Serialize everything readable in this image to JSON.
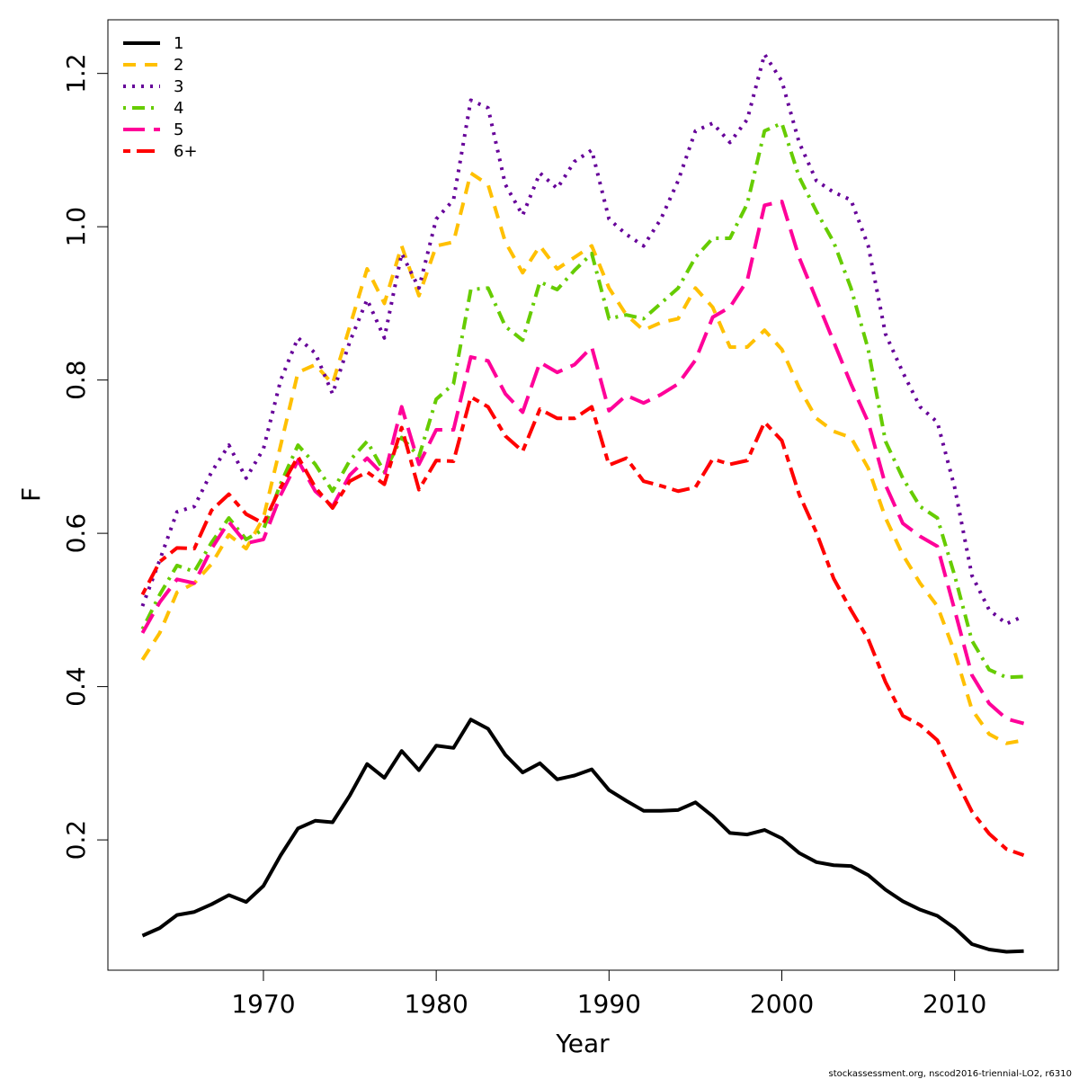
{
  "chart_data": {
    "type": "line",
    "xlabel": "Year",
    "ylabel": "F",
    "xlim": [
      1961,
      2016
    ],
    "ylim": [
      0.03,
      1.27
    ],
    "xticks": [
      1970,
      1980,
      1990,
      2000,
      2010
    ],
    "yticks": [
      0.2,
      0.4,
      0.6,
      0.8,
      1.0,
      1.2
    ],
    "ytick_labels": [
      "0.2",
      "0.4",
      "0.6",
      "0.8",
      "1.0",
      "1.2"
    ],
    "grid": false,
    "legend_position": "top-left",
    "x": [
      1963,
      1964,
      1965,
      1966,
      1967,
      1968,
      1969,
      1970,
      1971,
      1972,
      1973,
      1974,
      1975,
      1976,
      1977,
      1978,
      1979,
      1980,
      1981,
      1982,
      1983,
      1984,
      1985,
      1986,
      1987,
      1988,
      1989,
      1990,
      1991,
      1992,
      1993,
      1994,
      1995,
      1996,
      1997,
      1998,
      1999,
      2000,
      2001,
      2002,
      2003,
      2004,
      2005,
      2006,
      2007,
      2008,
      2009,
      2010,
      2011,
      2012,
      2013,
      2014
    ],
    "series": [
      {
        "name": "1",
        "color": "#000000",
        "dash": "solid",
        "values": [
          0.075,
          0.085,
          0.102,
          0.106,
          0.116,
          0.128,
          0.119,
          0.14,
          0.18,
          0.215,
          0.225,
          0.223,
          0.258,
          0.299,
          0.281,
          0.316,
          0.291,
          0.323,
          0.32,
          0.357,
          0.345,
          0.311,
          0.288,
          0.3,
          0.279,
          0.284,
          0.292,
          0.265,
          0.251,
          0.238,
          0.238,
          0.239,
          0.249,
          0.231,
          0.209,
          0.207,
          0.213,
          0.202,
          0.183,
          0.171,
          0.167,
          0.166,
          0.154,
          0.135,
          0.12,
          0.109,
          0.101,
          0.085,
          0.064,
          0.057,
          0.054,
          0.055
        ]
      },
      {
        "name": "2",
        "color": "#FFC000",
        "dash": "dashed",
        "values": [
          0.435,
          0.47,
          0.523,
          0.535,
          0.56,
          0.598,
          0.58,
          0.62,
          0.715,
          0.81,
          0.82,
          0.795,
          0.87,
          0.945,
          0.9,
          0.975,
          0.91,
          0.975,
          0.98,
          1.07,
          1.055,
          0.98,
          0.94,
          0.975,
          0.945,
          0.96,
          0.975,
          0.92,
          0.885,
          0.865,
          0.875,
          0.88,
          0.92,
          0.895,
          0.843,
          0.843,
          0.865,
          0.84,
          0.79,
          0.75,
          0.733,
          0.725,
          0.685,
          0.62,
          0.572,
          0.535,
          0.505,
          0.445,
          0.37,
          0.338,
          0.326,
          0.33
        ]
      },
      {
        "name": "3",
        "color": "#660099",
        "dash": "dotted",
        "values": [
          0.505,
          0.565,
          0.628,
          0.635,
          0.68,
          0.715,
          0.672,
          0.71,
          0.8,
          0.855,
          0.835,
          0.782,
          0.85,
          0.905,
          0.855,
          0.965,
          0.92,
          1.01,
          1.035,
          1.165,
          1.155,
          1.055,
          1.015,
          1.07,
          1.05,
          1.085,
          1.1,
          1.01,
          0.99,
          0.975,
          1.01,
          1.06,
          1.125,
          1.135,
          1.11,
          1.14,
          1.225,
          1.19,
          1.11,
          1.06,
          1.045,
          1.035,
          0.975,
          0.86,
          0.81,
          0.765,
          0.745,
          0.66,
          0.545,
          0.5,
          0.482,
          0.492
        ]
      },
      {
        "name": "4",
        "color": "#66CC00",
        "dash": "dotdash",
        "values": [
          0.475,
          0.52,
          0.558,
          0.55,
          0.588,
          0.62,
          0.592,
          0.605,
          0.665,
          0.715,
          0.69,
          0.655,
          0.695,
          0.72,
          0.68,
          0.725,
          0.7,
          0.775,
          0.795,
          0.918,
          0.92,
          0.87,
          0.852,
          0.928,
          0.918,
          0.943,
          0.965,
          0.88,
          0.885,
          0.88,
          0.9,
          0.92,
          0.96,
          0.985,
          0.985,
          1.03,
          1.125,
          1.135,
          1.065,
          1.02,
          0.98,
          0.92,
          0.84,
          0.72,
          0.672,
          0.635,
          0.62,
          0.545,
          0.46,
          0.422,
          0.412,
          0.413
        ]
      },
      {
        "name": "5",
        "color": "#FF0099",
        "dash": "longdash",
        "values": [
          0.47,
          0.51,
          0.54,
          0.535,
          0.58,
          0.615,
          0.587,
          0.592,
          0.65,
          0.695,
          0.655,
          0.635,
          0.676,
          0.698,
          0.675,
          0.765,
          0.69,
          0.735,
          0.735,
          0.83,
          0.825,
          0.782,
          0.758,
          0.823,
          0.81,
          0.82,
          0.843,
          0.76,
          0.78,
          0.77,
          0.781,
          0.795,
          0.826,
          0.882,
          0.895,
          0.93,
          1.028,
          1.033,
          0.96,
          0.905,
          0.85,
          0.795,
          0.745,
          0.663,
          0.613,
          0.596,
          0.583,
          0.5,
          0.415,
          0.378,
          0.358,
          0.352
        ]
      },
      {
        "name": "6+",
        "color": "#FF0000",
        "dash": "twodash",
        "values": [
          0.52,
          0.563,
          0.581,
          0.58,
          0.63,
          0.651,
          0.625,
          0.613,
          0.66,
          0.7,
          0.66,
          0.633,
          0.668,
          0.68,
          0.664,
          0.738,
          0.657,
          0.695,
          0.694,
          0.778,
          0.765,
          0.727,
          0.707,
          0.762,
          0.75,
          0.75,
          0.765,
          0.689,
          0.698,
          0.668,
          0.662,
          0.655,
          0.66,
          0.697,
          0.69,
          0.695,
          0.745,
          0.721,
          0.651,
          0.601,
          0.541,
          0.5,
          0.462,
          0.406,
          0.362,
          0.35,
          0.33,
          0.282,
          0.237,
          0.208,
          0.188,
          0.18
        ]
      }
    ]
  },
  "footer": "stockassessment.org, nscod2016-triennial-LO2, r6310"
}
